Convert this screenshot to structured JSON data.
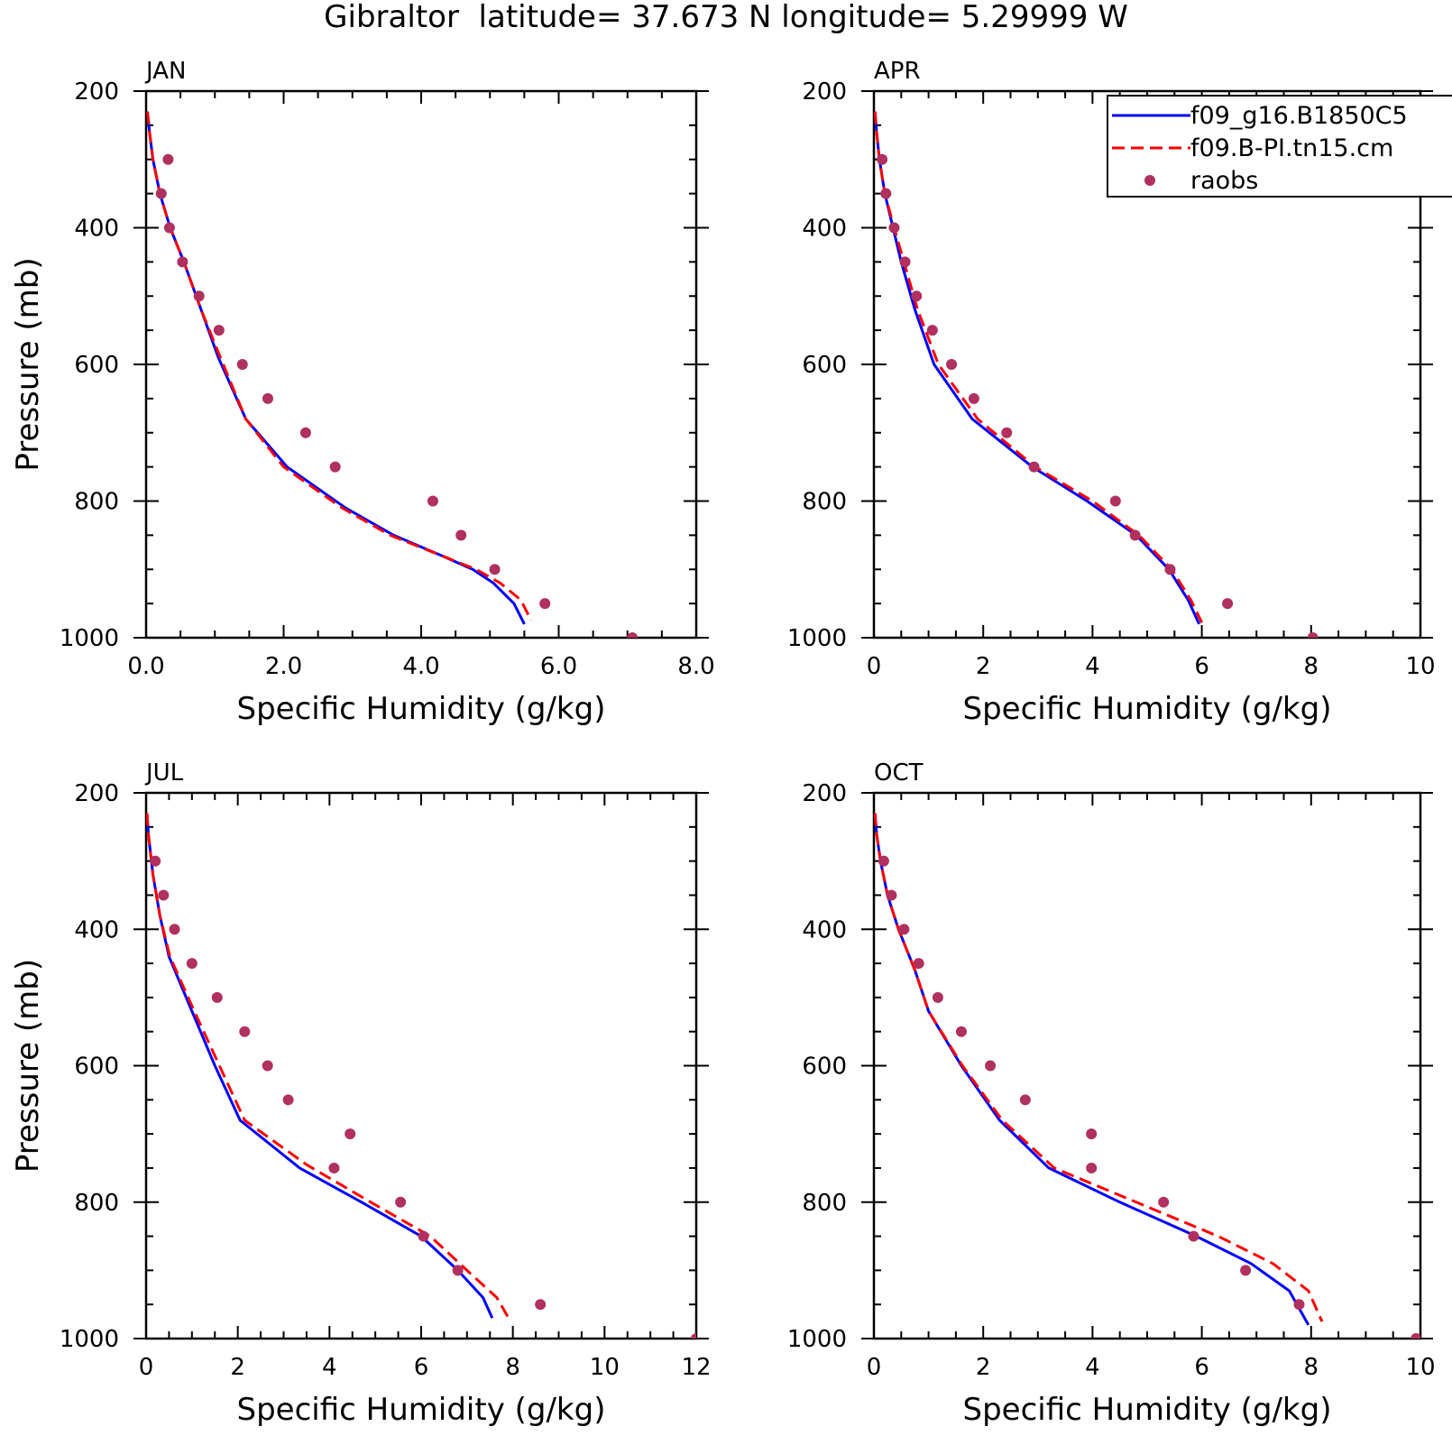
{
  "title": "Gibraltor  latitude= 37.673 N longitude= 5.29999 W",
  "legend": {
    "entries": [
      {
        "label": "f09_g16.B1850C5",
        "style": "solid",
        "color": "#0000ff"
      },
      {
        "label": "f09.B-PI.tn15.cm",
        "style": "dashed",
        "color": "#ff0000"
      },
      {
        "label": "raobs",
        "style": "marker",
        "color": "#b03060"
      }
    ]
  },
  "colors": {
    "model1": "#0000ff",
    "model2": "#ff0000",
    "obs": "#b03060"
  },
  "chart_data": [
    {
      "type": "line",
      "panel": "JAN",
      "xlabel": "Specific Humidity (g/kg)",
      "ylabel": "Pressure (mb)",
      "xlim": [
        0,
        8
      ],
      "ylim": [
        200,
        1000
      ],
      "xticks": [
        0,
        2,
        4,
        6,
        8
      ],
      "xtick_labels": [
        "0.0",
        "2.0",
        "4.0",
        "6.0",
        "8.0"
      ],
      "yticks": [
        200,
        400,
        600,
        800,
        1000
      ],
      "ytick_labels": [
        "200",
        "400",
        "600",
        "800",
        "1000"
      ],
      "series": [
        {
          "name": "f09_g16.B1850C5",
          "color": "#0000ff",
          "style": "solid",
          "x": [
            0.02,
            0.05,
            0.1,
            0.2,
            0.35,
            0.55,
            0.8,
            1.05,
            1.45,
            2.05,
            2.9,
            3.6,
            4.3,
            4.75,
            5.05,
            5.35,
            5.5
          ],
          "y": [
            230,
            260,
            300,
            350,
            400,
            450,
            520,
            590,
            680,
            750,
            810,
            850,
            880,
            900,
            920,
            950,
            980
          ]
        },
        {
          "name": "f09.B-PI.tn15.cm",
          "color": "#ff0000",
          "style": "dashed",
          "x": [
            0.02,
            0.05,
            0.1,
            0.2,
            0.35,
            0.55,
            0.8,
            1.08,
            1.45,
            2.0,
            2.85,
            3.55,
            4.3,
            4.8,
            5.15,
            5.45,
            5.6
          ],
          "y": [
            230,
            260,
            300,
            350,
            400,
            450,
            520,
            590,
            680,
            750,
            810,
            850,
            880,
            900,
            920,
            945,
            975
          ]
        },
        {
          "name": "raobs",
          "color": "#b03060",
          "style": "marker",
          "x": [
            0.32,
            0.22,
            0.34,
            0.53,
            0.77,
            1.06,
            1.4,
            1.77,
            2.32,
            2.75,
            4.17,
            4.58,
            5.07,
            5.8,
            7.07
          ],
          "y": [
            300,
            350,
            400,
            450,
            500,
            550,
            600,
            650,
            700,
            750,
            800,
            850,
            900,
            950,
            1000
          ]
        }
      ]
    },
    {
      "type": "line",
      "panel": "APR",
      "xlabel": "Specific Humidity (g/kg)",
      "ylabel": "",
      "xlim": [
        0,
        10
      ],
      "ylim": [
        200,
        1000
      ],
      "xticks": [
        0,
        2,
        4,
        6,
        8,
        10
      ],
      "xtick_labels": [
        "0",
        "2",
        "4",
        "6",
        "8",
        "10"
      ],
      "yticks": [
        200,
        400,
        600,
        800,
        1000
      ],
      "ytick_labels": [
        "200",
        "400",
        "600",
        "800",
        "1000"
      ],
      "series": [
        {
          "name": "f09_g16.B1850C5",
          "color": "#0000ff",
          "style": "solid",
          "x": [
            0.02,
            0.05,
            0.1,
            0.2,
            0.35,
            0.5,
            0.75,
            1.1,
            1.8,
            2.9,
            3.9,
            4.8,
            5.4,
            5.75,
            5.95
          ],
          "y": [
            230,
            260,
            300,
            350,
            400,
            450,
            520,
            600,
            680,
            750,
            800,
            850,
            900,
            945,
            980
          ]
        },
        {
          "name": "f09.B-PI.tn15.cm",
          "color": "#ff0000",
          "style": "dashed",
          "x": [
            0.02,
            0.05,
            0.1,
            0.2,
            0.37,
            0.55,
            0.8,
            1.18,
            1.9,
            2.95,
            4.0,
            4.85,
            5.45,
            5.8,
            6.0
          ],
          "y": [
            230,
            260,
            300,
            350,
            400,
            450,
            520,
            600,
            680,
            750,
            800,
            850,
            900,
            945,
            978
          ]
        },
        {
          "name": "raobs",
          "color": "#b03060",
          "style": "marker",
          "x": [
            0.15,
            0.22,
            0.37,
            0.57,
            0.78,
            1.07,
            1.42,
            1.83,
            2.43,
            2.93,
            4.42,
            4.78,
            5.42,
            6.47,
            8.03
          ],
          "y": [
            300,
            350,
            400,
            450,
            500,
            550,
            600,
            650,
            700,
            750,
            800,
            850,
            900,
            950,
            1000
          ]
        }
      ]
    },
    {
      "type": "line",
      "panel": "JUL",
      "xlabel": "Specific Humidity (g/kg)",
      "ylabel": "Pressure (mb)",
      "xlim": [
        0,
        12
      ],
      "ylim": [
        200,
        1000
      ],
      "xticks": [
        0,
        2,
        4,
        6,
        8,
        10,
        12
      ],
      "xtick_labels": [
        "0",
        "2",
        "4",
        "6",
        "8",
        "10",
        "12"
      ],
      "yticks": [
        200,
        400,
        600,
        800,
        1000
      ],
      "ytick_labels": [
        "200",
        "400",
        "600",
        "800",
        "1000"
      ],
      "series": [
        {
          "name": "f09_g16.B1850C5",
          "color": "#0000ff",
          "style": "solid",
          "x": [
            0.02,
            0.05,
            0.15,
            0.3,
            0.5,
            1.0,
            1.5,
            2.05,
            3.35,
            4.7,
            6.0,
            6.8,
            7.35,
            7.55
          ],
          "y": [
            230,
            260,
            320,
            380,
            440,
            520,
            600,
            680,
            750,
            800,
            850,
            900,
            940,
            970
          ]
        },
        {
          "name": "f09.B-PI.tn15.cm",
          "color": "#ff0000",
          "style": "dashed",
          "x": [
            0.02,
            0.05,
            0.15,
            0.3,
            0.52,
            1.05,
            1.6,
            2.15,
            3.5,
            4.9,
            6.2,
            7.0,
            7.65,
            7.95
          ],
          "y": [
            230,
            260,
            320,
            380,
            440,
            520,
            600,
            680,
            745,
            800,
            850,
            900,
            940,
            975
          ]
        },
        {
          "name": "raobs",
          "color": "#b03060",
          "style": "marker",
          "x": [
            0.2,
            0.38,
            0.62,
            1.0,
            1.55,
            2.15,
            2.65,
            3.1,
            4.45,
            4.1,
            5.55,
            6.05,
            6.8,
            8.6,
            12.0
          ],
          "y": [
            300,
            350,
            400,
            450,
            500,
            550,
            600,
            650,
            700,
            750,
            800,
            850,
            900,
            950,
            1000
          ]
        }
      ]
    },
    {
      "type": "line",
      "panel": "OCT",
      "xlabel": "Specific Humidity (g/kg)",
      "ylabel": "",
      "xlim": [
        0,
        10
      ],
      "ylim": [
        200,
        1000
      ],
      "xticks": [
        0,
        2,
        4,
        6,
        8,
        10
      ],
      "xtick_labels": [
        "0",
        "2",
        "4",
        "6",
        "8",
        "10"
      ],
      "yticks": [
        200,
        400,
        600,
        800,
        1000
      ],
      "ytick_labels": [
        "200",
        "400",
        "600",
        "800",
        "1000"
      ],
      "series": [
        {
          "name": "f09_g16.B1850C5",
          "color": "#0000ff",
          "style": "solid",
          "x": [
            0.02,
            0.05,
            0.12,
            0.25,
            0.45,
            0.75,
            1.0,
            1.6,
            2.3,
            3.2,
            4.5,
            5.9,
            6.9,
            7.6,
            7.95
          ],
          "y": [
            230,
            260,
            300,
            350,
            400,
            460,
            520,
            600,
            680,
            750,
            800,
            850,
            890,
            930,
            980
          ]
        },
        {
          "name": "f09.B-PI.tn15.cm",
          "color": "#ff0000",
          "style": "dashed",
          "x": [
            0.02,
            0.05,
            0.12,
            0.25,
            0.45,
            0.75,
            1.0,
            1.62,
            2.35,
            3.3,
            4.8,
            6.3,
            7.3,
            7.95,
            8.2
          ],
          "y": [
            230,
            260,
            300,
            350,
            400,
            460,
            520,
            600,
            680,
            750,
            800,
            850,
            890,
            930,
            975
          ]
        },
        {
          "name": "raobs",
          "color": "#b03060",
          "style": "marker",
          "x": [
            0.18,
            0.32,
            0.55,
            0.82,
            1.17,
            1.6,
            2.13,
            2.77,
            3.98,
            3.98,
            5.3,
            5.85,
            6.8,
            7.78,
            9.92
          ],
          "y": [
            300,
            350,
            400,
            450,
            500,
            550,
            600,
            650,
            700,
            750,
            800,
            850,
            900,
            950,
            1000
          ]
        }
      ]
    }
  ]
}
